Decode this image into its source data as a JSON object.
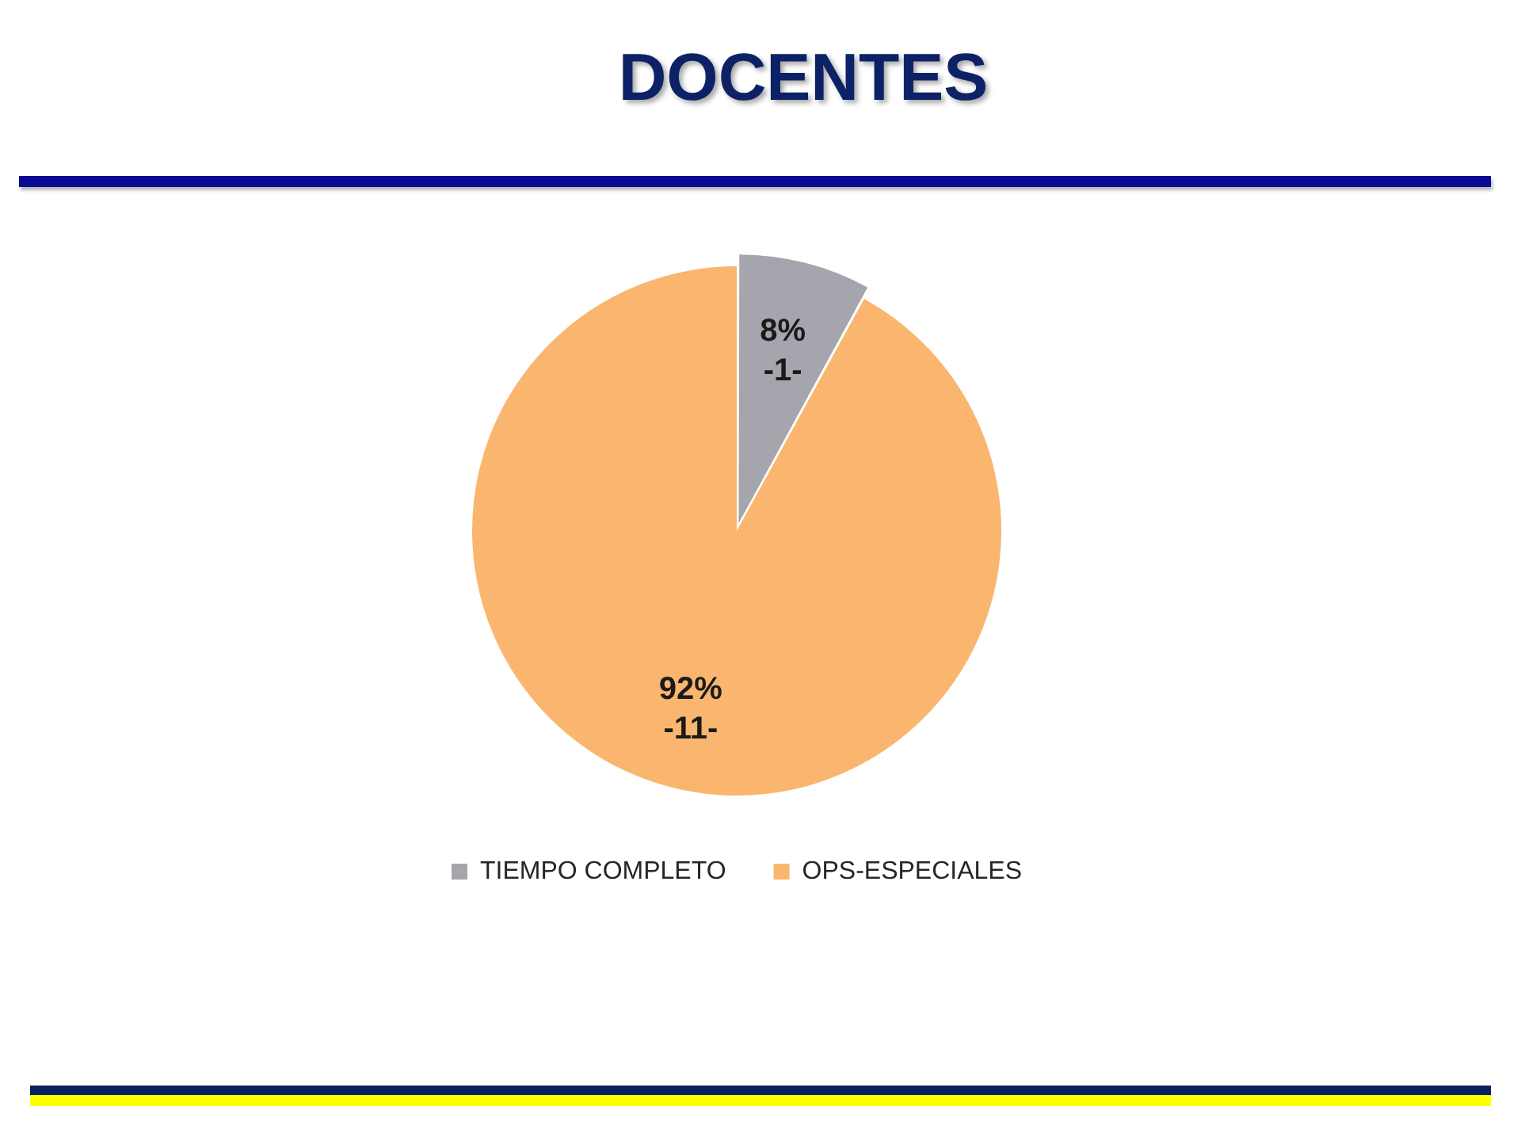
{
  "chart_data": {
    "type": "pie",
    "title": "DOCENTES",
    "categories": [
      "TIEMPO COMPLETO",
      "OPS-ESPECIALES"
    ],
    "values": [
      8,
      92
    ],
    "colors": [
      "#a5a5ae",
      "#fab66e"
    ],
    "value_labels": [
      "8%\n-1-",
      "92%\n-11-"
    ],
    "legend": "bottom"
  }
}
